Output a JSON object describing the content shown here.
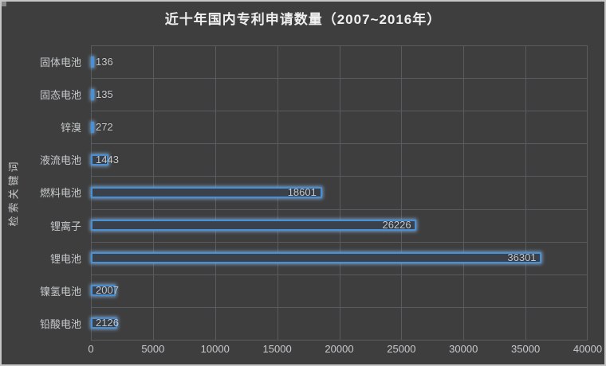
{
  "colors": {
    "background": "#3e3e3e",
    "frame_border": "#c6c6c6",
    "grid": "#595c5e",
    "text": "#c7cacc",
    "title": "#f0f0f0",
    "bar_border": "#4a90d5",
    "bar_fill": "#3a414b",
    "bar_glow": "rgba(140,190,240,0.75)"
  },
  "chart_data": {
    "type": "bar",
    "orientation": "horizontal",
    "title": "近十年国内专利申请数量（2007~2016年）",
    "ylabel": "检索关键词",
    "xlabel": "",
    "categories": [
      "固体电池",
      "固态电池",
      "锌溴",
      "液流电池",
      "燃料电池",
      "锂离子",
      "锂电池",
      "镍氢电池",
      "铅酸电池"
    ],
    "values": [
      136,
      135,
      272,
      1443,
      18601,
      26226,
      36301,
      2007,
      2126
    ],
    "xlim": [
      0,
      40000
    ],
    "x_ticks": [
      0,
      5000,
      10000,
      15000,
      20000,
      25000,
      30000,
      35000,
      40000
    ],
    "grid": true,
    "legend": "none",
    "value_labels_shown": true
  }
}
